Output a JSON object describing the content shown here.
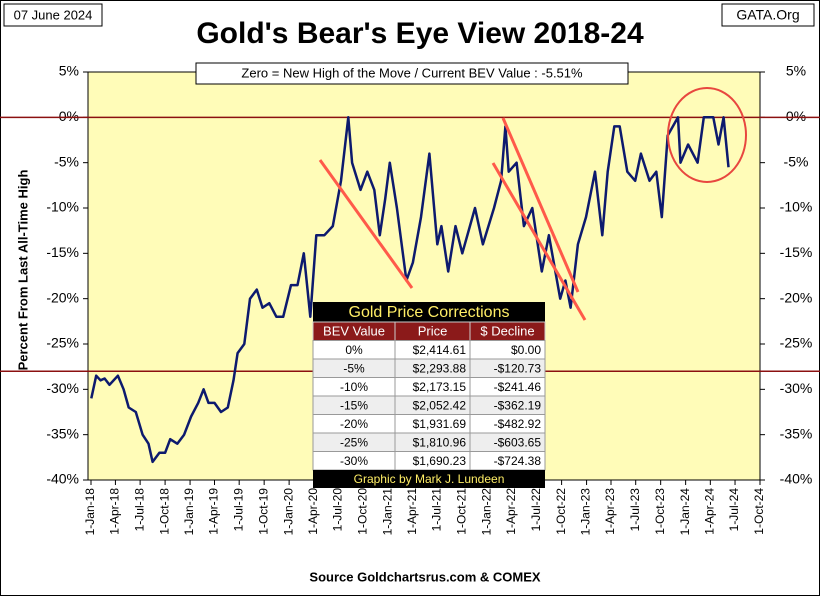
{
  "chart_data": {
    "type": "line",
    "title": "Gold's Bear's Eye View 2018-24",
    "date_note": "07 June 2024",
    "source_note": "GATA.Org",
    "annotation": "Zero = New High of the Move / Current  BEV Value : -5.51%",
    "y_label": "Percent  From  Last  All-Time  High",
    "x_label": "Source Goldchartsrus.com & COMEX",
    "xlim": [
      "2018-01-01",
      "2024-10-01"
    ],
    "xticks": [
      {
        "value": "2018-01-01",
        "label": "1-Jan-18"
      },
      {
        "value": "2018-04-01",
        "label": "1-Apr-18"
      },
      {
        "value": "2018-07-01",
        "label": "1-Jul-18"
      },
      {
        "value": "2018-10-01",
        "label": "1-Oct-18"
      },
      {
        "value": "2019-01-01",
        "label": "1-Jan-19"
      },
      {
        "value": "2019-04-01",
        "label": "1-Apr-19"
      },
      {
        "value": "2019-07-01",
        "label": "1-Jul-19"
      },
      {
        "value": "2019-10-01",
        "label": "1-Oct-19"
      },
      {
        "value": "2020-01-01",
        "label": "1-Jan-20"
      },
      {
        "value": "2020-04-01",
        "label": "1-Apr-20"
      },
      {
        "value": "2020-07-01",
        "label": "1-Jul-20"
      },
      {
        "value": "2020-10-01",
        "label": "1-Oct-20"
      },
      {
        "value": "2021-01-01",
        "label": "1-Jan-21"
      },
      {
        "value": "2021-04-01",
        "label": "1-Apr-21"
      },
      {
        "value": "2021-07-01",
        "label": "1-Jul-21"
      },
      {
        "value": "2021-10-01",
        "label": "1-Oct-21"
      },
      {
        "value": "2022-01-01",
        "label": "1-Jan-22"
      },
      {
        "value": "2022-04-01",
        "label": "1-Apr-22"
      },
      {
        "value": "2022-07-01",
        "label": "1-Jul-22"
      },
      {
        "value": "2022-10-01",
        "label": "1-Oct-22"
      },
      {
        "value": "2023-01-01",
        "label": "1-Jan-23"
      },
      {
        "value": "2023-04-01",
        "label": "1-Apr-23"
      },
      {
        "value": "2023-07-01",
        "label": "1-Jul-23"
      },
      {
        "value": "2023-10-01",
        "label": "1-Oct-23"
      },
      {
        "value": "2024-01-01",
        "label": "1-Jan-24"
      },
      {
        "value": "2024-04-01",
        "label": "1-Apr-24"
      },
      {
        "value": "2024-07-01",
        "label": "1-Jul-24"
      },
      {
        "value": "2024-10-01",
        "label": "1-Oct-24"
      }
    ],
    "ylim": [
      -40,
      5
    ],
    "yticks": [
      {
        "value": 5,
        "label": "5%"
      },
      {
        "value": 0,
        "label": "0%"
      },
      {
        "value": -5,
        "label": "-5%"
      },
      {
        "value": -10,
        "label": "-10%"
      },
      {
        "value": -15,
        "label": "-15%"
      },
      {
        "value": -20,
        "label": "-20%"
      },
      {
        "value": -25,
        "label": "-25%"
      },
      {
        "value": -30,
        "label": "-30%"
      },
      {
        "value": -35,
        "label": "-35%"
      },
      {
        "value": -40,
        "label": "-40%"
      }
    ],
    "reference_lines": [
      0,
      -28
    ],
    "reference_color": "#8b1010",
    "background": "#fffcb8",
    "x": [
      "2018-01-02",
      "2018-01-20",
      "2018-02-05",
      "2018-02-20",
      "2018-03-10",
      "2018-04-10",
      "2018-05-01",
      "2018-05-20",
      "2018-06-15",
      "2018-07-10",
      "2018-08-01",
      "2018-08-16",
      "2018-09-10",
      "2018-10-01",
      "2018-10-20",
      "2018-11-15",
      "2018-12-10",
      "2019-01-05",
      "2019-01-31",
      "2019-02-20",
      "2019-03-10",
      "2019-04-01",
      "2019-04-25",
      "2019-05-20",
      "2019-06-10",
      "2019-06-25",
      "2019-07-20",
      "2019-08-10",
      "2019-09-04",
      "2019-09-25",
      "2019-10-20",
      "2019-11-15",
      "2019-12-10",
      "2020-01-08",
      "2020-02-01",
      "2020-02-24",
      "2020-03-19",
      "2020-04-10",
      "2020-05-10",
      "2020-06-10",
      "2020-07-10",
      "2020-08-06",
      "2020-08-20",
      "2020-09-20",
      "2020-10-15",
      "2020-11-10",
      "2020-11-30",
      "2020-12-20",
      "2021-01-06",
      "2021-02-01",
      "2021-03-08",
      "2021-04-01",
      "2021-05-01",
      "2021-06-01",
      "2021-06-30",
      "2021-07-15",
      "2021-08-09",
      "2021-09-05",
      "2021-09-30",
      "2021-11-16",
      "2021-12-15",
      "2022-01-25",
      "2022-02-20",
      "2022-03-08",
      "2022-03-20",
      "2022-04-18",
      "2022-05-15",
      "2022-06-15",
      "2022-07-20",
      "2022-08-15",
      "2022-09-26",
      "2022-10-15",
      "2022-11-03",
      "2022-11-30",
      "2022-12-30",
      "2023-02-01",
      "2023-02-28",
      "2023-03-20",
      "2023-04-13",
      "2023-05-03",
      "2023-05-31",
      "2023-06-29",
      "2023-07-20",
      "2023-08-21",
      "2023-09-15",
      "2023-10-05",
      "2023-10-27",
      "2023-12-04",
      "2023-12-13",
      "2024-01-10",
      "2024-02-14",
      "2024-03-08",
      "2024-04-12",
      "2024-05-01",
      "2024-05-20",
      "2024-06-07"
    ],
    "series": [
      {
        "name": "BEV",
        "color": "#0d1a6e",
        "values": [
          -31,
          -28.5,
          -29,
          -28.8,
          -29.5,
          -28.5,
          -30,
          -32,
          -32.5,
          -35,
          -36,
          -38,
          -37,
          -37,
          -35.5,
          -36,
          -35,
          -33,
          -31.5,
          -30,
          -31.5,
          -31.5,
          -32.5,
          -32,
          -29,
          -26,
          -25,
          -20,
          -19,
          -21,
          -20.5,
          -22,
          -22,
          -18.5,
          -18.5,
          -15,
          -22,
          -13,
          -13,
          -12,
          -7,
          0,
          -5,
          -8,
          -6,
          -8,
          -13,
          -9,
          -5,
          -10,
          -18,
          -16,
          -11,
          -4,
          -14,
          -12,
          -17,
          -12,
          -15,
          -10,
          -14,
          -10,
          -7,
          -1,
          -6,
          -5,
          -12,
          -10,
          -17,
          -13,
          -20,
          -18,
          -21,
          -14,
          -11,
          -6,
          -13,
          -6,
          -1,
          -1,
          -6,
          -7,
          -4,
          -7,
          -6,
          -11,
          -2,
          0,
          -5,
          -3,
          -5,
          0,
          0,
          -3,
          0,
          -5.51
        ]
      }
    ],
    "table": {
      "title": "Gold Price Corrections",
      "columns": [
        "BEV Value",
        "Price",
        "$ Decline"
      ],
      "rows": [
        [
          "0%",
          "$2,414.61",
          "$0.00"
        ],
        [
          "-5%",
          "$2,293.88",
          "-$120.73"
        ],
        [
          "-10%",
          "$2,173.15",
          "-$241.46"
        ],
        [
          "-15%",
          "$2,052.42",
          "-$362.19"
        ],
        [
          "-20%",
          "$1,931.69",
          "-$482.92"
        ],
        [
          "-25%",
          "$1,810.96",
          "-$603.65"
        ],
        [
          "-30%",
          "$1,690.23",
          "-$724.38"
        ]
      ],
      "footer": "Graphic by Mark J. Lundeen"
    }
  }
}
